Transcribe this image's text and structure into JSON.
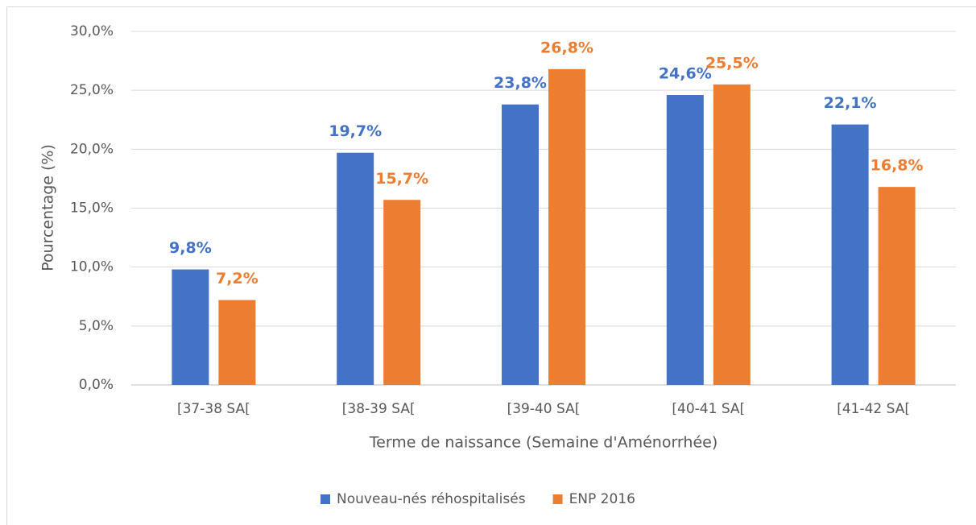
{
  "chart_data": {
    "type": "bar",
    "x_label": "Terme de naissance (Semaine d'Aménorrhée)",
    "y_label": "Pourcentage (%)",
    "categories": [
      "[37-38 SA[",
      "[38-39 SA[",
      "[39-40 SA[",
      "[40-41 SA[",
      "[41-42 SA["
    ],
    "series": [
      {
        "name": "Nouveau-nés réhospitalisés",
        "color": "#4472c4",
        "values": [
          9.8,
          19.7,
          23.8,
          24.6,
          22.1
        ],
        "value_labels": [
          "9,8%",
          "19,7%",
          "23,8%",
          "24,6%",
          "22,1%"
        ]
      },
      {
        "name": "ENP 2016",
        "color": "#ed7d31",
        "values": [
          7.2,
          15.7,
          26.8,
          25.5,
          16.8
        ],
        "value_labels": [
          "7,2%",
          "15,7%",
          "26,8%",
          "25,5%",
          "16,8%"
        ]
      }
    ],
    "ylim": [
      0,
      30
    ],
    "yticks": [
      {
        "value": 0,
        "label": "0,0%"
      },
      {
        "value": 5,
        "label": "5,0%"
      },
      {
        "value": 10,
        "label": "10,0%"
      },
      {
        "value": 15,
        "label": "15,0%"
      },
      {
        "value": 20,
        "label": "20,0%"
      },
      {
        "value": 25,
        "label": "25,0%"
      },
      {
        "value": 30,
        "label": "30,0%"
      }
    ],
    "grid": true,
    "legend": "bottom"
  }
}
